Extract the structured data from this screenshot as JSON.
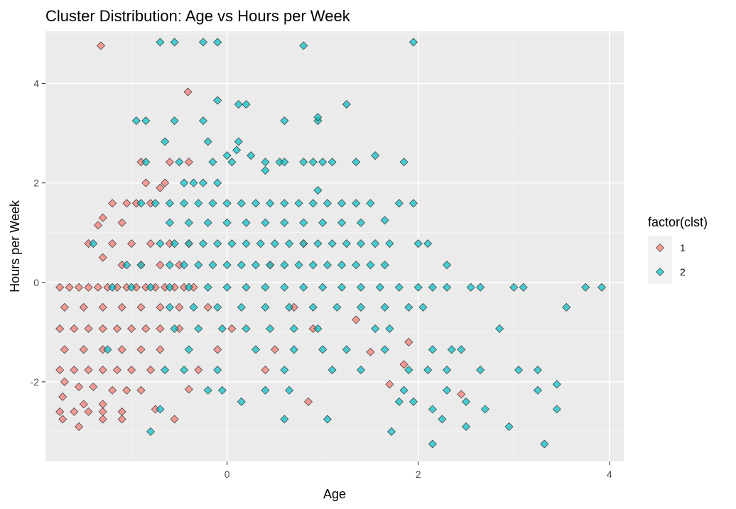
{
  "chart_data": {
    "type": "scatter",
    "title": "Cluster Distribution: Age vs Hours per Week",
    "xlabel": "Age",
    "ylabel": "Hours per Week",
    "xlim": [
      -1.9,
      4.15
    ],
    "ylim": [
      -3.6,
      5.05
    ],
    "x_ticks": [
      0,
      2,
      4
    ],
    "y_ticks": [
      -2,
      0,
      2,
      4
    ],
    "grid": true,
    "legend": {
      "title": "factor(clst)",
      "position": "right"
    },
    "marker": "diamond",
    "colors": {
      "1": "#F8766D",
      "2": "#00BFC4",
      "panel": "#EBEBEB",
      "grid_major": "#FFFFFF",
      "grid_minor": "#F5F5F5",
      "outline": "#333333"
    },
    "series": [
      {
        "name": "1",
        "points": [
          [
            -1.32,
            4.76
          ],
          [
            -0.41,
            3.83
          ],
          [
            -1.2,
            1.59
          ],
          [
            -1.05,
            1.59
          ],
          [
            -0.95,
            1.59
          ],
          [
            -0.8,
            1.59
          ],
          [
            -0.7,
            1.9
          ],
          [
            -0.85,
            2.0
          ],
          [
            -0.9,
            2.42
          ],
          [
            -0.6,
            2.42
          ],
          [
            -0.4,
            2.42
          ],
          [
            -0.65,
            2.0
          ],
          [
            -1.3,
            1.3
          ],
          [
            -1.35,
            1.15
          ],
          [
            -1.1,
            1.2
          ],
          [
            -1.45,
            0.78
          ],
          [
            -1.2,
            0.78
          ],
          [
            -1.0,
            0.78
          ],
          [
            -0.8,
            0.78
          ],
          [
            -0.6,
            0.78
          ],
          [
            -0.4,
            0.78
          ],
          [
            -1.3,
            0.5
          ],
          [
            -1.1,
            0.35
          ],
          [
            -0.9,
            0.35
          ],
          [
            -0.7,
            0.35
          ],
          [
            -0.5,
            0.35
          ],
          [
            -1.75,
            -0.1
          ],
          [
            -1.65,
            -0.1
          ],
          [
            -1.55,
            -0.1
          ],
          [
            -1.45,
            -0.1
          ],
          [
            -1.35,
            -0.1
          ],
          [
            -1.25,
            -0.1
          ],
          [
            -1.15,
            -0.1
          ],
          [
            -1.05,
            -0.1
          ],
          [
            -0.95,
            -0.1
          ],
          [
            -0.85,
            -0.1
          ],
          [
            -0.75,
            -0.1
          ],
          [
            -0.65,
            -0.1
          ],
          [
            -0.55,
            -0.1
          ],
          [
            -0.45,
            -0.1
          ],
          [
            -0.35,
            -0.1
          ],
          [
            -1.7,
            -0.5
          ],
          [
            -1.5,
            -0.5
          ],
          [
            -1.3,
            -0.5
          ],
          [
            -1.1,
            -0.5
          ],
          [
            -0.9,
            -0.5
          ],
          [
            -0.7,
            -0.5
          ],
          [
            -0.5,
            -0.5
          ],
          [
            -1.75,
            -0.93
          ],
          [
            -1.6,
            -0.93
          ],
          [
            -1.45,
            -0.93
          ],
          [
            -1.3,
            -0.93
          ],
          [
            -1.15,
            -0.93
          ],
          [
            -1.0,
            -0.93
          ],
          [
            -0.85,
            -0.93
          ],
          [
            -0.7,
            -0.93
          ],
          [
            -1.7,
            -1.35
          ],
          [
            -1.5,
            -1.35
          ],
          [
            -1.3,
            -1.35
          ],
          [
            -1.1,
            -1.35
          ],
          [
            -0.9,
            -1.35
          ],
          [
            -0.7,
            -1.35
          ],
          [
            -1.75,
            -1.76
          ],
          [
            -1.6,
            -1.76
          ],
          [
            -1.45,
            -1.76
          ],
          [
            -1.3,
            -1.76
          ],
          [
            -1.15,
            -1.76
          ],
          [
            -1.0,
            -1.76
          ],
          [
            -0.8,
            -1.76
          ],
          [
            -1.7,
            -2.0
          ],
          [
            -1.55,
            -2.1
          ],
          [
            -1.4,
            -2.1
          ],
          [
            -1.2,
            -2.17
          ],
          [
            -1.05,
            -2.17
          ],
          [
            -0.9,
            -2.17
          ],
          [
            -1.72,
            -2.3
          ],
          [
            -1.5,
            -2.45
          ],
          [
            -1.3,
            -2.45
          ],
          [
            -1.75,
            -2.6
          ],
          [
            -1.6,
            -2.6
          ],
          [
            -1.45,
            -2.6
          ],
          [
            -1.3,
            -2.6
          ],
          [
            -1.1,
            -2.6
          ],
          [
            -0.75,
            -2.55
          ],
          [
            -1.72,
            -2.75
          ],
          [
            -1.55,
            -2.9
          ],
          [
            -1.3,
            -2.75
          ],
          [
            -1.1,
            -2.75
          ],
          [
            -0.55,
            -2.75
          ],
          [
            -0.4,
            -2.15
          ],
          [
            -0.3,
            -1.76
          ],
          [
            -0.5,
            -0.93
          ],
          [
            -0.2,
            -0.5
          ],
          [
            -0.1,
            -1.35
          ],
          [
            0.05,
            -0.93
          ],
          [
            0.4,
            -1.76
          ],
          [
            0.5,
            -1.35
          ],
          [
            0.7,
            -0.5
          ],
          [
            0.85,
            -2.4
          ],
          [
            0.9,
            -0.93
          ],
          [
            1.35,
            -0.75
          ],
          [
            1.5,
            -1.4
          ],
          [
            1.85,
            -1.65
          ],
          [
            1.9,
            -1.2
          ],
          [
            2.45,
            -2.25
          ],
          [
            1.7,
            -2.05
          ],
          [
            0.45,
            0.35
          ],
          [
            0.8,
            0.78
          ]
        ]
      },
      {
        "name": "2",
        "points": [
          [
            -0.7,
            4.83
          ],
          [
            -0.55,
            4.83
          ],
          [
            -0.25,
            4.83
          ],
          [
            -0.1,
            4.83
          ],
          [
            0.8,
            4.76
          ],
          [
            1.95,
            4.83
          ],
          [
            -0.95,
            3.25
          ],
          [
            -0.85,
            3.25
          ],
          [
            -0.55,
            3.25
          ],
          [
            -0.25,
            3.25
          ],
          [
            -0.1,
            3.66
          ],
          [
            0.12,
            3.58
          ],
          [
            0.2,
            3.58
          ],
          [
            0.6,
            3.25
          ],
          [
            0.95,
            3.25
          ],
          [
            0.95,
            3.32
          ],
          [
            1.25,
            3.58
          ],
          [
            -0.65,
            2.83
          ],
          [
            -0.2,
            2.83
          ],
          [
            0.12,
            2.83
          ],
          [
            0.1,
            2.66
          ],
          [
            -0.85,
            2.42
          ],
          [
            -0.5,
            2.42
          ],
          [
            -0.15,
            2.42
          ],
          [
            0.0,
            2.55
          ],
          [
            0.05,
            2.42
          ],
          [
            0.25,
            2.55
          ],
          [
            0.4,
            2.42
          ],
          [
            0.55,
            2.42
          ],
          [
            0.6,
            2.42
          ],
          [
            0.8,
            2.42
          ],
          [
            0.9,
            2.42
          ],
          [
            1.0,
            2.42
          ],
          [
            1.1,
            2.42
          ],
          [
            1.35,
            2.42
          ],
          [
            1.55,
            2.55
          ],
          [
            1.85,
            2.42
          ],
          [
            0.4,
            2.25
          ],
          [
            -0.45,
            2.0
          ],
          [
            -0.35,
            2.0
          ],
          [
            -0.25,
            2.0
          ],
          [
            -0.1,
            2.0
          ],
          [
            0.95,
            1.85
          ],
          [
            -0.9,
            1.59
          ],
          [
            -0.75,
            1.59
          ],
          [
            -0.6,
            1.59
          ],
          [
            -0.45,
            1.59
          ],
          [
            -0.3,
            1.59
          ],
          [
            -0.15,
            1.59
          ],
          [
            0.0,
            1.59
          ],
          [
            0.15,
            1.59
          ],
          [
            0.3,
            1.59
          ],
          [
            0.45,
            1.59
          ],
          [
            0.6,
            1.59
          ],
          [
            0.75,
            1.59
          ],
          [
            0.9,
            1.59
          ],
          [
            1.05,
            1.59
          ],
          [
            1.2,
            1.59
          ],
          [
            1.35,
            1.59
          ],
          [
            1.5,
            1.59
          ],
          [
            1.8,
            1.59
          ],
          [
            1.95,
            1.59
          ],
          [
            -0.6,
            1.2
          ],
          [
            -0.4,
            1.2
          ],
          [
            -0.2,
            1.2
          ],
          [
            0.0,
            1.2
          ],
          [
            0.2,
            1.2
          ],
          [
            0.4,
            1.2
          ],
          [
            0.6,
            1.2
          ],
          [
            0.8,
            1.2
          ],
          [
            1.0,
            1.2
          ],
          [
            1.2,
            1.2
          ],
          [
            1.4,
            1.2
          ],
          [
            1.65,
            1.25
          ],
          [
            -1.4,
            0.78
          ],
          [
            -0.7,
            0.78
          ],
          [
            -0.55,
            0.78
          ],
          [
            -0.4,
            0.78
          ],
          [
            -0.25,
            0.78
          ],
          [
            -0.1,
            0.78
          ],
          [
            0.05,
            0.78
          ],
          [
            0.2,
            0.78
          ],
          [
            0.35,
            0.78
          ],
          [
            0.5,
            0.78
          ],
          [
            0.65,
            0.78
          ],
          [
            0.8,
            0.78
          ],
          [
            0.95,
            0.78
          ],
          [
            1.1,
            0.78
          ],
          [
            1.25,
            0.78
          ],
          [
            1.4,
            0.78
          ],
          [
            1.55,
            0.78
          ],
          [
            1.7,
            0.78
          ],
          [
            2.0,
            0.78
          ],
          [
            2.1,
            0.78
          ],
          [
            -1.05,
            0.35
          ],
          [
            -0.9,
            0.35
          ],
          [
            -0.6,
            0.35
          ],
          [
            -0.45,
            0.35
          ],
          [
            -0.3,
            0.35
          ],
          [
            -0.15,
            0.35
          ],
          [
            0.0,
            0.35
          ],
          [
            0.15,
            0.35
          ],
          [
            0.3,
            0.35
          ],
          [
            0.45,
            0.35
          ],
          [
            0.6,
            0.35
          ],
          [
            0.75,
            0.35
          ],
          [
            0.9,
            0.35
          ],
          [
            1.05,
            0.35
          ],
          [
            1.2,
            0.35
          ],
          [
            1.35,
            0.35
          ],
          [
            1.5,
            0.35
          ],
          [
            1.65,
            0.35
          ],
          [
            2.3,
            0.35
          ],
          [
            -1.2,
            -0.1
          ],
          [
            -1.0,
            -0.1
          ],
          [
            -0.8,
            -0.1
          ],
          [
            -0.6,
            -0.1
          ],
          [
            -0.4,
            -0.1
          ],
          [
            -0.2,
            -0.1
          ],
          [
            0.0,
            -0.1
          ],
          [
            0.2,
            -0.1
          ],
          [
            0.4,
            -0.1
          ],
          [
            0.6,
            -0.1
          ],
          [
            0.8,
            -0.1
          ],
          [
            1.0,
            -0.1
          ],
          [
            1.2,
            -0.1
          ],
          [
            1.4,
            -0.1
          ],
          [
            1.6,
            -0.1
          ],
          [
            1.8,
            -0.1
          ],
          [
            2.0,
            -0.1
          ],
          [
            2.15,
            -0.1
          ],
          [
            2.3,
            -0.1
          ],
          [
            2.55,
            -0.1
          ],
          [
            2.65,
            -0.1
          ],
          [
            3.0,
            -0.1
          ],
          [
            3.1,
            -0.1
          ],
          [
            3.75,
            -0.1
          ],
          [
            3.92,
            -0.1
          ],
          [
            -0.6,
            -0.5
          ],
          [
            -0.35,
            -0.5
          ],
          [
            -0.1,
            -0.5
          ],
          [
            0.15,
            -0.5
          ],
          [
            0.4,
            -0.5
          ],
          [
            0.65,
            -0.5
          ],
          [
            0.9,
            -0.5
          ],
          [
            1.15,
            -0.5
          ],
          [
            1.4,
            -0.5
          ],
          [
            1.65,
            -0.5
          ],
          [
            1.9,
            -0.5
          ],
          [
            2.05,
            -0.5
          ],
          [
            3.55,
            -0.5
          ],
          [
            -0.55,
            -0.93
          ],
          [
            -0.3,
            -0.93
          ],
          [
            -0.05,
            -0.93
          ],
          [
            0.2,
            -0.93
          ],
          [
            0.45,
            -0.93
          ],
          [
            0.7,
            -0.93
          ],
          [
            0.95,
            -0.93
          ],
          [
            1.55,
            -0.93
          ],
          [
            1.7,
            -0.93
          ],
          [
            2.85,
            -0.93
          ],
          [
            -1.25,
            -1.35
          ],
          [
            -0.4,
            -1.35
          ],
          [
            0.3,
            -1.35
          ],
          [
            0.7,
            -1.35
          ],
          [
            1.0,
            -1.35
          ],
          [
            1.25,
            -1.35
          ],
          [
            1.65,
            -1.35
          ],
          [
            2.15,
            -1.35
          ],
          [
            2.35,
            -1.35
          ],
          [
            2.45,
            -1.35
          ],
          [
            -0.65,
            -1.76
          ],
          [
            -0.45,
            -1.76
          ],
          [
            -0.1,
            -1.76
          ],
          [
            0.6,
            -1.76
          ],
          [
            1.1,
            -1.76
          ],
          [
            1.4,
            -1.76
          ],
          [
            1.9,
            -1.76
          ],
          [
            2.1,
            -1.76
          ],
          [
            2.3,
            -1.76
          ],
          [
            2.65,
            -1.76
          ],
          [
            3.05,
            -1.76
          ],
          [
            3.25,
            -1.76
          ],
          [
            -0.2,
            -2.17
          ],
          [
            -0.05,
            -2.17
          ],
          [
            0.4,
            -2.17
          ],
          [
            0.65,
            -2.17
          ],
          [
            1.85,
            -2.17
          ],
          [
            2.3,
            -2.17
          ],
          [
            3.25,
            -2.17
          ],
          [
            3.45,
            -2.05
          ],
          [
            0.15,
            -2.4
          ],
          [
            1.8,
            -2.4
          ],
          [
            1.95,
            -2.4
          ],
          [
            2.5,
            -2.4
          ],
          [
            -0.7,
            -2.55
          ],
          [
            2.15,
            -2.55
          ],
          [
            2.7,
            -2.55
          ],
          [
            3.45,
            -2.55
          ],
          [
            0.6,
            -2.75
          ],
          [
            1.05,
            -2.75
          ],
          [
            2.25,
            -2.75
          ],
          [
            2.5,
            -2.9
          ],
          [
            2.95,
            -2.9
          ],
          [
            -0.8,
            -3.0
          ],
          [
            1.72,
            -3.0
          ],
          [
            2.15,
            -3.25
          ],
          [
            3.32,
            -3.25
          ]
        ]
      }
    ]
  }
}
